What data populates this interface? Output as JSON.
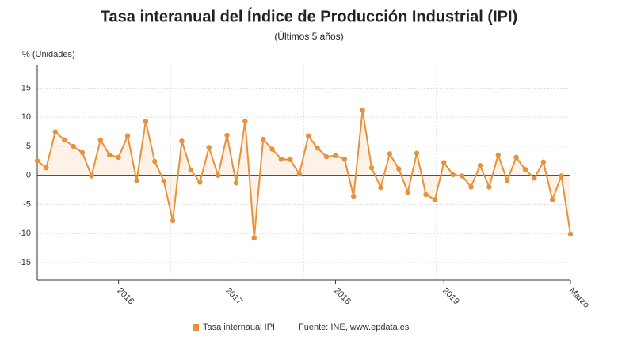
{
  "chart_data": {
    "type": "line",
    "title": "Tasa interanual del Índice de Producción Industrial (IPI)",
    "subtitle": "(Últimos 5 años)",
    "y_label": "% (Unidades)",
    "source": "Fuente: INE, www.epdata.es",
    "categories": [
      null,
      null,
      null,
      null,
      null,
      null,
      null,
      null,
      null,
      "2016",
      null,
      null,
      null,
      null,
      null,
      null,
      null,
      null,
      null,
      null,
      null,
      "2017",
      null,
      null,
      null,
      null,
      null,
      null,
      null,
      null,
      null,
      null,
      null,
      "2018",
      null,
      null,
      null,
      null,
      null,
      null,
      null,
      null,
      null,
      null,
      null,
      "2019",
      null,
      null,
      null,
      null,
      null,
      null,
      null,
      null,
      null,
      null,
      null,
      null,
      null,
      "Marzo"
    ],
    "series": [
      {
        "name": "Tasa internaual IPI",
        "color": "#e8913a",
        "values": [
          2.5,
          1.3,
          7.5,
          6.1,
          5.0,
          3.9,
          -0.1,
          6.1,
          3.5,
          3.1,
          6.8,
          -0.9,
          9.3,
          2.4,
          -1.0,
          -7.8,
          5.9,
          0.9,
          -1.2,
          4.8,
          0.0,
          6.9,
          -1.3,
          9.3,
          -10.8,
          6.2,
          4.5,
          2.8,
          2.7,
          0.2,
          6.8,
          4.7,
          3.2,
          3.4,
          2.8,
          -3.6,
          11.2,
          1.3,
          -2.1,
          3.7,
          1.1,
          -2.9,
          3.8,
          -3.3,
          -4.2,
          2.2,
          0.1,
          -0.1,
          -2.0,
          1.7,
          -2.0,
          3.5,
          -0.9,
          3.1,
          1.0,
          -0.5,
          2.3,
          -4.2,
          -0.1,
          -10.1
        ]
      }
    ],
    "ylim": [
      -18,
      19
    ],
    "yticks": [
      -15,
      -10,
      -5,
      0,
      5,
      10,
      15
    ],
    "grid": true
  }
}
